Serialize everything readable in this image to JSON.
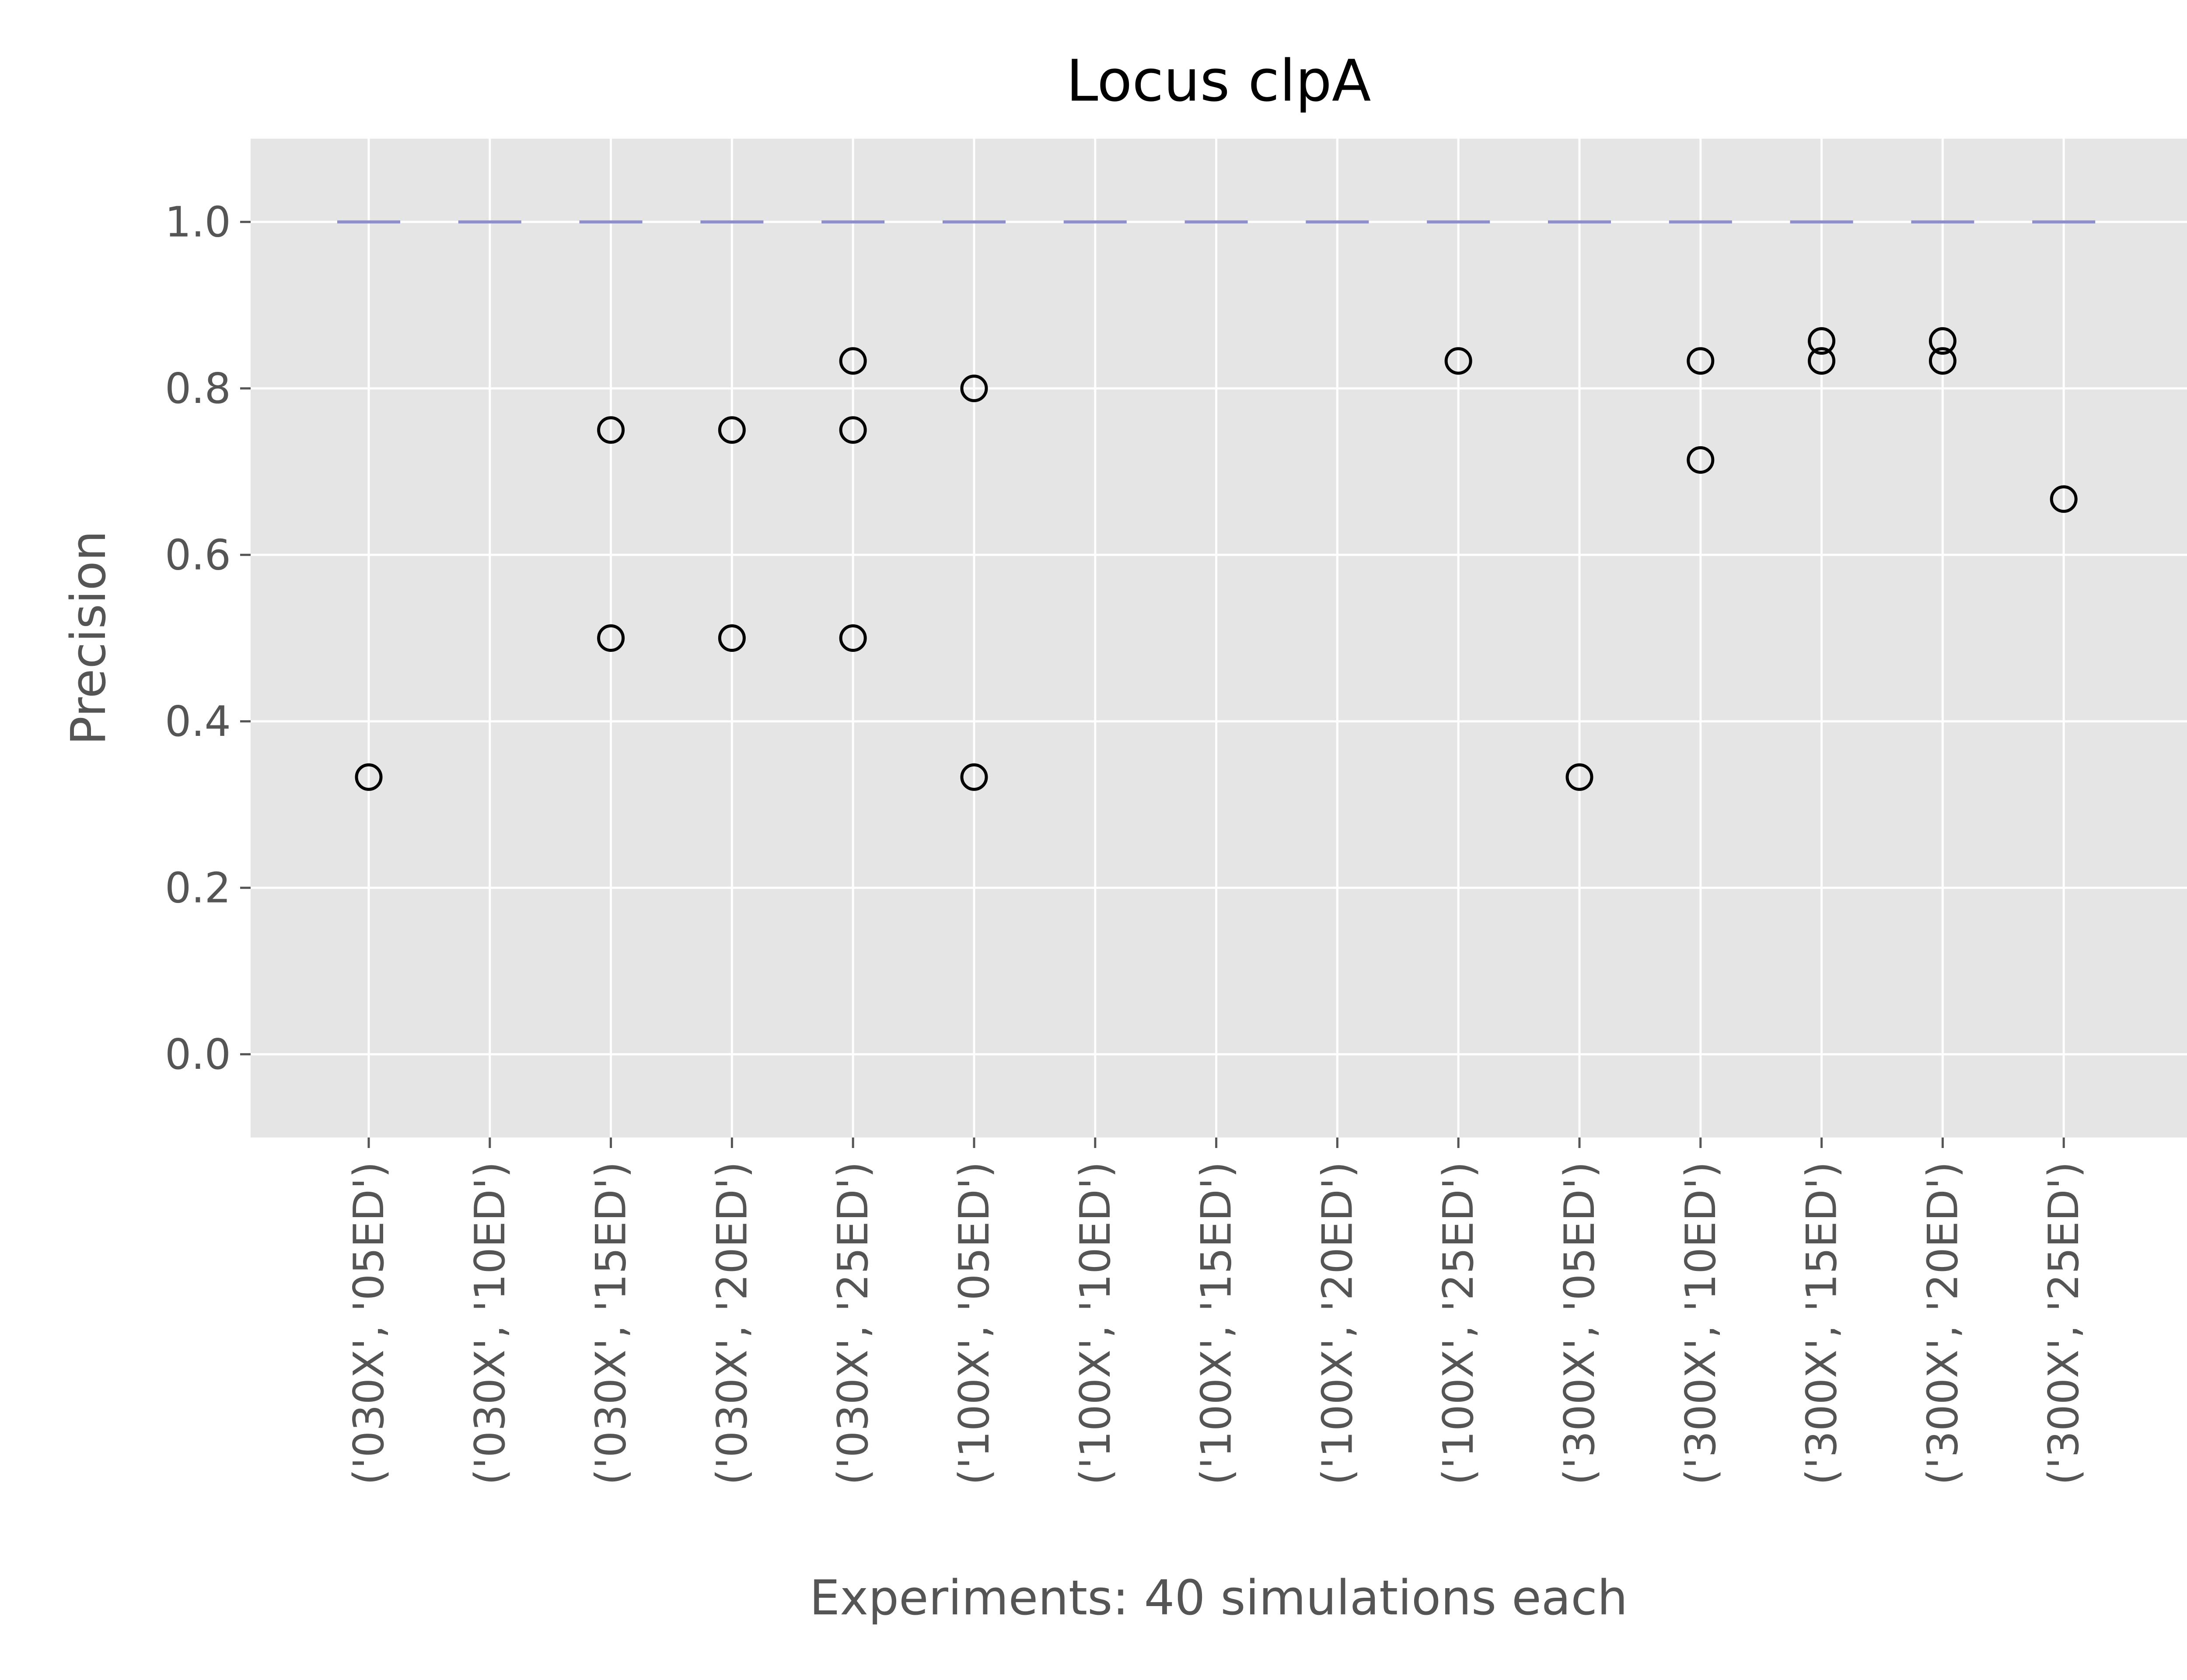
{
  "chart_data": {
    "type": "box",
    "title": "Locus clpA",
    "xlabel": "Experiments: 40 simulations each",
    "ylabel": "Precision",
    "ylim": [
      -0.1,
      1.1
    ],
    "yticks": [
      "0.0",
      "0.2",
      "0.4",
      "0.6",
      "0.8",
      "1.0"
    ],
    "grid": true,
    "categories": [
      "('030X', '05ED')",
      "('030X', '10ED')",
      "('030X', '15ED')",
      "('030X', '20ED')",
      "('030X', '25ED')",
      "('100X', '05ED')",
      "('100X', '10ED')",
      "('100X', '15ED')",
      "('100X', '20ED')",
      "('100X', '25ED')",
      "('300X', '05ED')",
      "('300X', '10ED')",
      "('300X', '15ED')",
      "('300X', '20ED')",
      "('300X', '25ED')"
    ],
    "medians": [
      1.0,
      1.0,
      1.0,
      1.0,
      1.0,
      1.0,
      1.0,
      1.0,
      1.0,
      1.0,
      1.0,
      1.0,
      1.0,
      1.0,
      1.0
    ],
    "outliers": [
      [
        0.333
      ],
      [],
      [
        0.75,
        0.5
      ],
      [
        0.75,
        0.5
      ],
      [
        0.833,
        0.75,
        0.5
      ],
      [
        0.8,
        0.333
      ],
      [],
      [],
      [],
      [
        0.833
      ],
      [
        0.333
      ],
      [
        0.833,
        0.714
      ],
      [
        0.857,
        0.833
      ],
      [
        0.857,
        0.833
      ],
      [
        0.667
      ]
    ],
    "colors": {
      "background": "#e5e5e5",
      "grid": "#ffffff",
      "median": "#8e8ec9",
      "outlier": "#000000",
      "text": "#555555"
    }
  }
}
